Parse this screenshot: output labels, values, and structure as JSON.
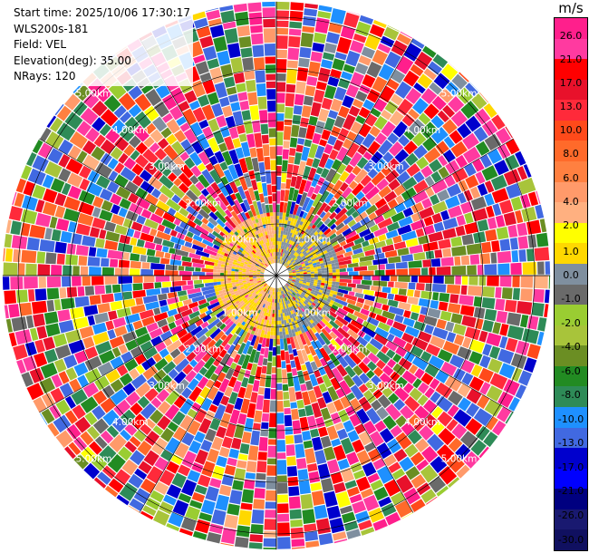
{
  "header": {
    "start_time": "Start time: 2025/10/06 17:30:17",
    "instrument": "WLS200s-181",
    "field": "Field: VEL",
    "elevation": "Elevation(deg): 35.00",
    "nrays": "NRays: 120"
  },
  "colorbar": {
    "unit": "m/s",
    "bins": [
      {
        "color": "#ff1f8c"
      },
      {
        "color": "#ff3aa0"
      },
      {
        "color": "#ff0000"
      },
      {
        "color": "#e8112b"
      },
      {
        "color": "#ff2a3a"
      },
      {
        "color": "#ff4a1a"
      },
      {
        "color": "#ff6a2a"
      },
      {
        "color": "#ff8040"
      },
      {
        "color": "#ff9a6a"
      },
      {
        "color": "#ffb080"
      },
      {
        "color": "#ffff00"
      },
      {
        "color": "#ffd800"
      },
      {
        "color": "#7f8f9f"
      },
      {
        "color": "#6a6a6a"
      },
      {
        "color": "#9acd32"
      },
      {
        "color": "#a8c43a"
      },
      {
        "color": "#6b8e23"
      },
      {
        "color": "#228b22"
      },
      {
        "color": "#2e8b57"
      },
      {
        "color": "#1e90ff"
      },
      {
        "color": "#4169e1"
      },
      {
        "color": "#0000cd"
      },
      {
        "color": "#0000ff"
      },
      {
        "color": "#000080"
      },
      {
        "color": "#191970"
      },
      {
        "color": "#101060"
      }
    ],
    "ticks": [
      "26.0",
      "21.0",
      "17.0",
      "13.0",
      "10.0",
      "8.0",
      "6.0",
      "4.0",
      "2.0",
      "1.0",
      "0.0",
      "-1.0",
      "-2.0",
      "-4.0",
      "-6.0",
      "-8.0",
      "-10.0",
      "-13.0",
      "-17.0",
      "-21.0",
      "-26.0",
      "-30.0"
    ]
  },
  "chart_data": {
    "type": "ppi",
    "field": "VEL",
    "unit": "m/s",
    "elevation_deg": 35.0,
    "n_rays": 120,
    "range_rings_km": [
      1,
      2,
      3,
      4,
      5
    ],
    "ring_labels": [
      "1.00km",
      "2.00km",
      "3.00km",
      "4.00km",
      "5.00km"
    ],
    "max_range_km": 5.3,
    "near_field": {
      "extent_km": 1.2,
      "east_sector_velocity_ms": -1.5,
      "west_sector_velocity_ms": 1.5,
      "background_velocity_ms": 0.0
    },
    "far_field": "noise (random velocities across full color range)"
  }
}
